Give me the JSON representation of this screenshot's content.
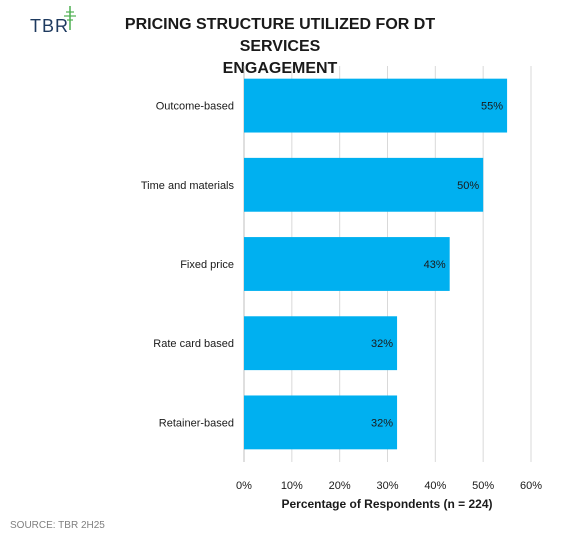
{
  "header": {
    "logo_text": "TBR",
    "title_line1": "PRICING STRUCTURE UTILIZED FOR DT SERVICES",
    "title_line2": "ENGAGEMENT"
  },
  "footer": {
    "source": "SOURCE: TBR 2H25"
  },
  "colors": {
    "bar": "#00b0f0",
    "grid": "#d9d9d9",
    "text": "#1a1a1a",
    "logo": "#1e3a5f",
    "logo_accent": "#4caf50"
  },
  "chart_data": {
    "type": "bar",
    "orientation": "horizontal",
    "categories": [
      "Outcome-based",
      "Time and materials",
      "Fixed price",
      "Rate card based",
      "Retainer-based"
    ],
    "values": [
      55,
      50,
      43,
      32,
      32
    ],
    "data_labels": [
      "55%",
      "50%",
      "43%",
      "32%",
      "32%"
    ],
    "xlabel": "Percentage of Respondents (n = 224)",
    "xlim": [
      0,
      60
    ],
    "xticks": [
      0,
      10,
      20,
      30,
      40,
      50,
      60
    ],
    "xtick_labels": [
      "0%",
      "10%",
      "20%",
      "30%",
      "40%",
      "50%",
      "60%"
    ],
    "grid": true,
    "legend": false
  }
}
